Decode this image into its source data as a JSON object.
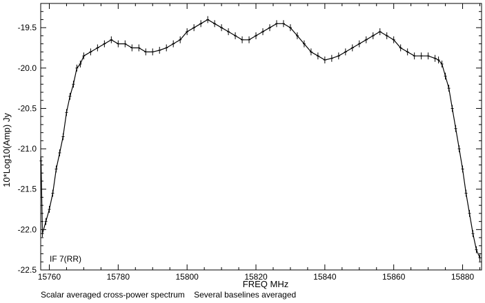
{
  "chart_data": {
    "type": "line",
    "xlabel": "FREQ  MHz",
    "ylabel": "10*Log10(Amp) Jy",
    "xlim": [
      15757.5,
      15885.5
    ],
    "ylim": [
      -22.5,
      -19.2
    ],
    "x_ticks": [
      15760,
      15780,
      15800,
      15820,
      15840,
      15860,
      15880
    ],
    "y_ticks": [
      -22.5,
      -22.0,
      -21.5,
      -21.0,
      -20.5,
      -20.0,
      -19.5
    ],
    "x_tick_labels": [
      "15760",
      "15780",
      "15800",
      "15820",
      "15840",
      "15860",
      "15880"
    ],
    "y_tick_labels": [
      "-22.5",
      "-22.0",
      "-21.5",
      "-21.0",
      "-20.5",
      "-20.0",
      "-19.5"
    ],
    "annotation": "IF 7(RR)",
    "footer": "Scalar averaged cross-power spectrum    Several baselines averaged",
    "series": [
      {
        "points": [
          [
            15757.6,
            -21.15
          ],
          [
            15758.0,
            -22.05
          ],
          [
            15759.0,
            -21.9
          ],
          [
            15760.0,
            -21.75
          ],
          [
            15761.0,
            -21.55
          ],
          [
            15762.0,
            -21.25
          ],
          [
            15763.0,
            -21.05
          ],
          [
            15764.0,
            -20.85
          ],
          [
            15765.0,
            -20.55
          ],
          [
            15766.0,
            -20.35
          ],
          [
            15767.0,
            -20.2
          ],
          [
            15768.0,
            -20.0
          ],
          [
            15769.0,
            -19.95
          ],
          [
            15770.0,
            -19.85
          ],
          [
            15772.0,
            -19.8
          ],
          [
            15774.0,
            -19.75
          ],
          [
            15776.0,
            -19.7
          ],
          [
            15778.0,
            -19.65
          ],
          [
            15780.0,
            -19.7
          ],
          [
            15782.0,
            -19.7
          ],
          [
            15784.0,
            -19.75
          ],
          [
            15786.0,
            -19.75
          ],
          [
            15788.0,
            -19.8
          ],
          [
            15790.0,
            -19.8
          ],
          [
            15792.0,
            -19.78
          ],
          [
            15794.0,
            -19.75
          ],
          [
            15796.0,
            -19.7
          ],
          [
            15798.0,
            -19.65
          ],
          [
            15800.0,
            -19.55
          ],
          [
            15802.0,
            -19.5
          ],
          [
            15804.0,
            -19.45
          ],
          [
            15806.0,
            -19.4
          ],
          [
            15808.0,
            -19.45
          ],
          [
            15810.0,
            -19.5
          ],
          [
            15812.0,
            -19.55
          ],
          [
            15814.0,
            -19.6
          ],
          [
            15816.0,
            -19.65
          ],
          [
            15818.0,
            -19.65
          ],
          [
            15820.0,
            -19.6
          ],
          [
            15822.0,
            -19.55
          ],
          [
            15824.0,
            -19.5
          ],
          [
            15826.0,
            -19.45
          ],
          [
            15828.0,
            -19.45
          ],
          [
            15830.0,
            -19.5
          ],
          [
            15832.0,
            -19.6
          ],
          [
            15834.0,
            -19.7
          ],
          [
            15836.0,
            -19.8
          ],
          [
            15838.0,
            -19.85
          ],
          [
            15840.0,
            -19.9
          ],
          [
            15842.0,
            -19.88
          ],
          [
            15844.0,
            -19.85
          ],
          [
            15846.0,
            -19.8
          ],
          [
            15848.0,
            -19.75
          ],
          [
            15850.0,
            -19.7
          ],
          [
            15852.0,
            -19.65
          ],
          [
            15854.0,
            -19.6
          ],
          [
            15856.0,
            -19.55
          ],
          [
            15858.0,
            -19.6
          ],
          [
            15860.0,
            -19.65
          ],
          [
            15862.0,
            -19.75
          ],
          [
            15864.0,
            -19.8
          ],
          [
            15866.0,
            -19.85
          ],
          [
            15868.0,
            -19.85
          ],
          [
            15870.0,
            -19.85
          ],
          [
            15872.0,
            -19.88
          ],
          [
            15873.0,
            -19.9
          ],
          [
            15874.0,
            -19.95
          ],
          [
            15875.0,
            -20.1
          ],
          [
            15876.0,
            -20.25
          ],
          [
            15877.0,
            -20.5
          ],
          [
            15878.0,
            -20.75
          ],
          [
            15879.0,
            -21.0
          ],
          [
            15880.0,
            -21.25
          ],
          [
            15881.0,
            -21.55
          ],
          [
            15882.0,
            -21.8
          ],
          [
            15883.0,
            -22.05
          ],
          [
            15884.0,
            -22.25
          ],
          [
            15885.0,
            -22.35
          ]
        ]
      }
    ]
  }
}
